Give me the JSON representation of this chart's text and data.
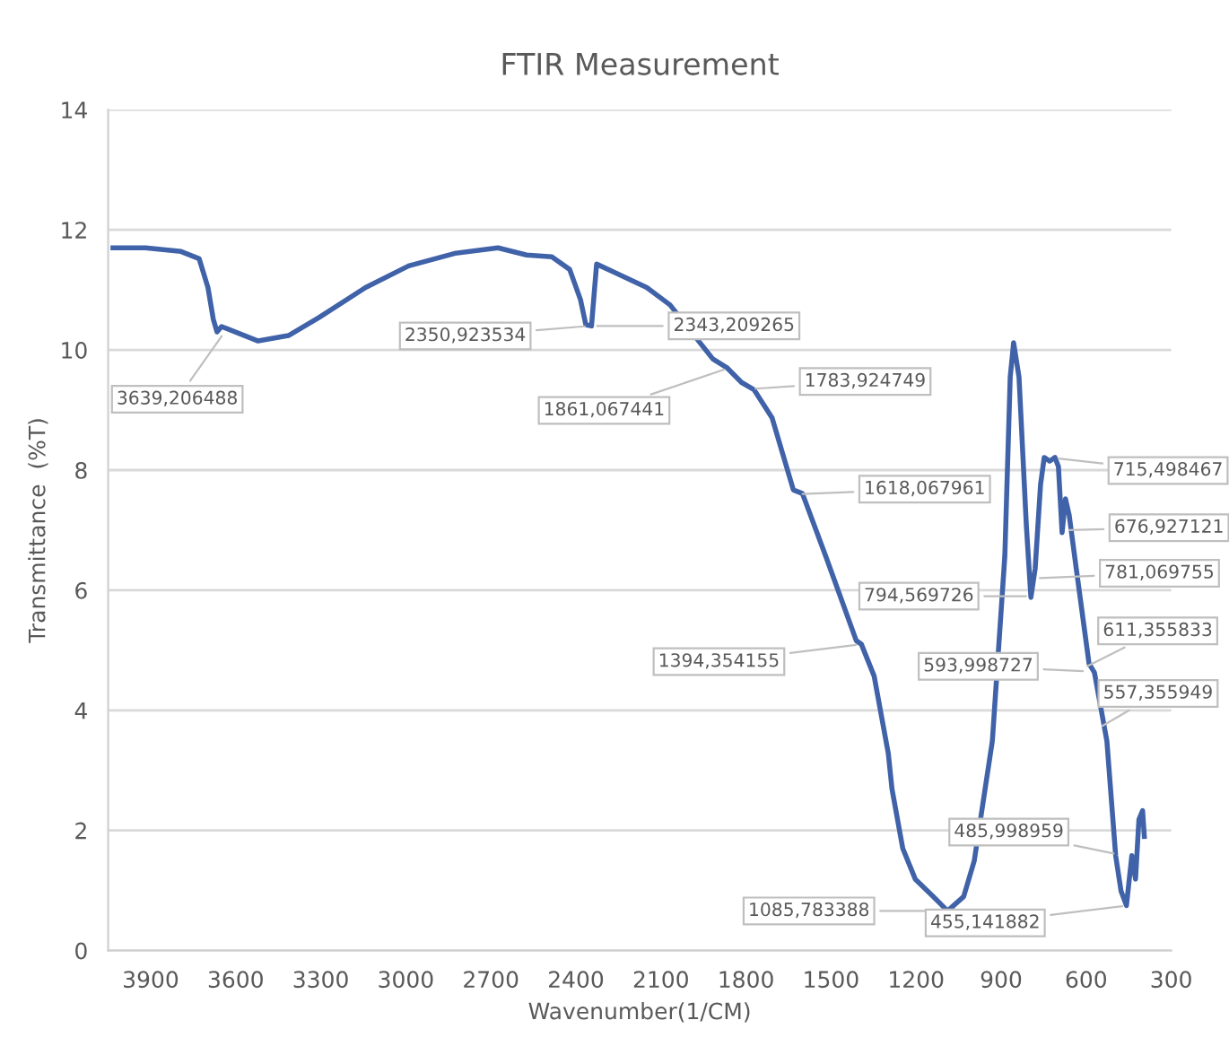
{
  "chart_data": {
    "type": "line",
    "title": "FTIR Measurement",
    "xlabel": "Wavenumber(1/CM)",
    "ylabel": "Transmittance  (%T)",
    "xlim": [
      4050,
      300
    ],
    "xticks": [
      3900,
      3600,
      3300,
      3000,
      2700,
      2400,
      2100,
      1800,
      1500,
      1200,
      900,
      600,
      300
    ],
    "ylim": [
      0,
      14
    ],
    "yticks": [
      0,
      2,
      4,
      6,
      8,
      10,
      12,
      14
    ],
    "grid": "y",
    "legend": false,
    "marker": "none",
    "line_style": "solid",
    "series": [
      {
        "color": "#4062a8",
        "x": [
          4033,
          3919,
          3793,
          3729,
          3698,
          3679,
          3666,
          3650,
          3521,
          3414,
          3306,
          3142,
          2990,
          2826,
          2675,
          2574,
          2485,
          2422,
          2384,
          2365,
          2345,
          2327,
          2258,
          2150,
          2068,
          1917,
          1866,
          1816,
          1772,
          1708,
          1633,
          1601,
          1519,
          1411,
          1393,
          1348,
          1298,
          1285,
          1247,
          1203,
          1140,
          1089,
          1032,
          995,
          931,
          887,
          868,
          856,
          837,
          811,
          795,
          780,
          761,
          748,
          729,
          710,
          698,
          685,
          673,
          660,
          635,
          590,
          571,
          527,
          496,
          477,
          458,
          439,
          426,
          414,
          401,
          395
        ],
        "values": [
          11.7,
          11.7,
          11.64,
          11.52,
          11.04,
          10.51,
          10.3,
          10.39,
          10.15,
          10.24,
          10.54,
          11.04,
          11.4,
          11.61,
          11.7,
          11.58,
          11.55,
          11.34,
          10.84,
          10.42,
          10.4,
          11.43,
          11.28,
          11.04,
          10.75,
          9.85,
          9.7,
          9.46,
          9.34,
          8.87,
          7.67,
          7.61,
          6.57,
          5.16,
          5.1,
          4.57,
          3.28,
          2.69,
          1.7,
          1.19,
          0.9,
          0.66,
          0.9,
          1.49,
          3.49,
          6.57,
          9.55,
          10.12,
          9.55,
          7.07,
          5.88,
          6.36,
          7.76,
          8.21,
          8.15,
          8.21,
          8.06,
          6.96,
          7.52,
          7.25,
          6.36,
          4.78,
          4.63,
          3.49,
          1.58,
          0.99,
          0.75,
          1.58,
          1.19,
          2.18,
          2.33,
          1.9
        ]
      }
    ],
    "annotations": [
      {
        "text": "3639,206488",
        "x": 3639.206488,
        "y": 10.3
      },
      {
        "text": "2350,923534",
        "x": 2350.923534,
        "y": 10.4
      },
      {
        "text": "2343,209265",
        "x": 2343.209265,
        "y": 10.4
      },
      {
        "text": "1861,067441",
        "x": 1861.067441,
        "y": 9.7
      },
      {
        "text": "1783,924749",
        "x": 1783.924749,
        "y": 9.35
      },
      {
        "text": "1618,067961",
        "x": 1618.067961,
        "y": 7.6
      },
      {
        "text": "1394,354155",
        "x": 1394.354155,
        "y": 5.1
      },
      {
        "text": "1085,783388",
        "x": 1085.783388,
        "y": 0.66
      },
      {
        "text": "794,569726",
        "x": 794.569726,
        "y": 5.9
      },
      {
        "text": "781,069755",
        "x": 781.069755,
        "y": 6.2
      },
      {
        "text": "715,498467",
        "x": 715.498467,
        "y": 8.2
      },
      {
        "text": "676,927121",
        "x": 676.927121,
        "y": 7.0
      },
      {
        "text": "611,355833",
        "x": 611.355833,
        "y": 4.7
      },
      {
        "text": "593,998727",
        "x": 593.998727,
        "y": 4.65
      },
      {
        "text": "557,355949",
        "x": 557.355949,
        "y": 3.7
      },
      {
        "text": "485,998959",
        "x": 485.998959,
        "y": 1.6
      },
      {
        "text": "455,141882",
        "x": 455.141882,
        "y": 0.75
      }
    ]
  }
}
